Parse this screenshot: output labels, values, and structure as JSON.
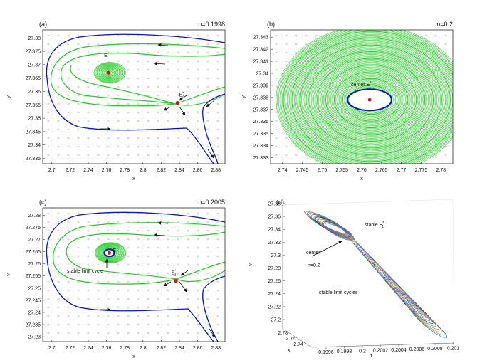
{
  "colors": {
    "green": "#22cc22",
    "blue": "#0a14c8",
    "red": "#e01010",
    "arrow": "#111111",
    "grid": "#d9d9d9",
    "field": "#9a9a9a"
  },
  "chart_data": [
    {
      "id": "a",
      "type": "line",
      "panel_label": "(a)",
      "param_label": "n=0.1998",
      "xlabel": "x",
      "ylabel": "y",
      "xlim": [
        2.69,
        2.89
      ],
      "ylim": [
        27.333,
        27.383
      ],
      "xticks": [
        "2.7",
        "2.72",
        "2.74",
        "2.76",
        "2.78",
        "2.8",
        "2.82",
        "2.84",
        "2.86",
        "2.88"
      ],
      "yticks": [
        "27.335",
        "27.34",
        "27.345",
        "27.35",
        "27.355",
        "27.36",
        "27.365",
        "27.37",
        "27.375",
        "27.38"
      ],
      "equilibria": [
        {
          "name": "E1*",
          "x": 2.762,
          "y": 27.367,
          "label": "E",
          "sub": "1",
          "sup": "*"
        },
        {
          "name": "E2*",
          "x": 2.838,
          "y": 27.3557,
          "label": "E",
          "sub": "2",
          "sup": "*"
        }
      ],
      "annotations": []
    },
    {
      "id": "b",
      "type": "line",
      "panel_label": "(b)",
      "param_label": "n=0.2",
      "xlabel": "x",
      "ylabel": "y",
      "xlim": [
        2.737,
        2.783
      ],
      "ylim": [
        27.3325,
        27.3436
      ],
      "xticks": [
        "2.74",
        "2.745",
        "2.75",
        "2.755",
        "2.76",
        "2.765",
        "2.77",
        "2.775",
        "2.78"
      ],
      "yticks": [
        "27.333",
        "27.334",
        "27.335",
        "27.336",
        "27.337",
        "27.338",
        "27.339",
        "27.34",
        "27.341",
        "27.342",
        "27.343"
      ],
      "equilibria": [
        {
          "name": "E1*",
          "x": 2.762,
          "y": 27.3378,
          "label": "center E",
          "sub": "1",
          "sup": "*"
        }
      ],
      "annotations": []
    },
    {
      "id": "c",
      "type": "line",
      "panel_label": "(c)",
      "param_label": "n=0.2005",
      "xlabel": "x",
      "ylabel": "y",
      "xlim": [
        2.69,
        2.89
      ],
      "ylim": [
        27.228,
        27.283
      ],
      "xticks": [
        "2.7",
        "2.72",
        "2.74",
        "2.76",
        "2.78",
        "2.8",
        "2.82",
        "2.84",
        "2.86",
        "2.88"
      ],
      "yticks": [
        "27.23",
        "27.235",
        "27.24",
        "27.245",
        "27.25",
        "27.255",
        "27.26",
        "27.265",
        "27.27",
        "27.275",
        "27.28"
      ],
      "equilibria": [
        {
          "name": "E1",
          "x": 2.763,
          "y": 27.2645,
          "label": "E",
          "sub": "1",
          "sup": ""
        },
        {
          "name": "E2*",
          "x": 2.836,
          "y": 27.253,
          "label": "E",
          "sub": "2",
          "sup": "*"
        }
      ],
      "annotations": [
        {
          "text": "stable limit cycle"
        }
      ]
    },
    {
      "id": "d",
      "type": "line",
      "panel_label": "(d)",
      "param_label": "",
      "ylabel": "y",
      "xlabel": "x",
      "zlabel": "τ",
      "ylim": [
        27.19,
        27.38
      ],
      "yticks": [
        "27.38",
        "27.36",
        "27.34",
        "27.32",
        "27.3",
        "27.28",
        "27.26",
        "27.24",
        "27.22",
        "27.2"
      ],
      "xticks": [
        "2.78",
        "2.76",
        "2.74"
      ],
      "zticks": [
        "0.1996",
        "0.1998",
        "0.2",
        "0.2002",
        "0.2004",
        "0.2006",
        "0.2008",
        "0.201"
      ],
      "annotations": [
        {
          "text": "stable E",
          "sub": "1",
          "sup": "*"
        },
        {
          "text": "center"
        },
        {
          "text": "n=0.2"
        },
        {
          "text": "stable limit cycles"
        }
      ]
    }
  ]
}
